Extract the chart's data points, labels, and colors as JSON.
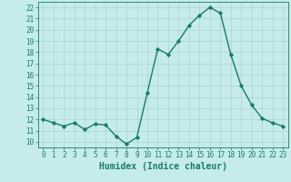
{
  "x": [
    0,
    1,
    2,
    3,
    4,
    5,
    6,
    7,
    8,
    9,
    10,
    11,
    12,
    13,
    14,
    15,
    16,
    17,
    18,
    19,
    20,
    21,
    22,
    23
  ],
  "y": [
    12.0,
    11.7,
    11.4,
    11.7,
    11.1,
    11.6,
    11.5,
    10.5,
    9.8,
    10.4,
    14.4,
    18.3,
    17.8,
    19.0,
    20.4,
    21.3,
    22.0,
    21.5,
    17.8,
    15.0,
    13.3,
    12.1,
    11.7,
    11.4
  ],
  "line_color": "#1a7a6e",
  "marker": "D",
  "marker_size": 2.2,
  "bg_color": "#c5ecea",
  "grid_color": "#aed4d2",
  "xlabel": "Humidex (Indice chaleur)",
  "ylim": [
    9.5,
    22.5
  ],
  "xlim": [
    -0.5,
    23.5
  ],
  "yticks": [
    10,
    11,
    12,
    13,
    14,
    15,
    16,
    17,
    18,
    19,
    20,
    21,
    22
  ],
  "xticks": [
    0,
    1,
    2,
    3,
    4,
    5,
    6,
    7,
    8,
    9,
    10,
    11,
    12,
    13,
    14,
    15,
    16,
    17,
    18,
    19,
    20,
    21,
    22,
    23
  ],
  "tick_fontsize": 5.5,
  "xlabel_fontsize": 7,
  "line_width": 1.0,
  "spine_color": "#1a7a6e"
}
